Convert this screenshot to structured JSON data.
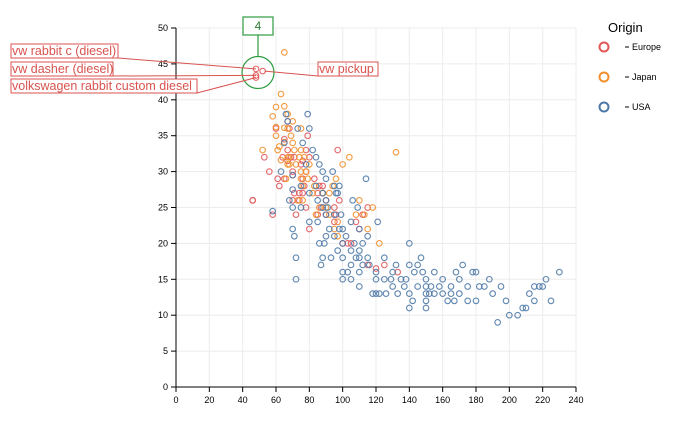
{
  "chart_data": {
    "type": "scatter",
    "title": "",
    "xlabel": "",
    "ylabel": "",
    "xlim": [
      0,
      240
    ],
    "ylim": [
      0,
      50
    ],
    "x_ticks": [
      0,
      20,
      40,
      60,
      80,
      100,
      120,
      140,
      160,
      180,
      200,
      220,
      240
    ],
    "y_ticks": [
      0,
      5,
      10,
      15,
      20,
      25,
      30,
      35,
      40,
      45,
      50
    ],
    "grid": true,
    "legend": {
      "title": "Origin",
      "placement": "top-right",
      "entries": [
        {
          "label": "Europe",
          "color": "#e15759"
        },
        {
          "label": "Japan",
          "color": "#f28e2b"
        },
        {
          "label": "USA",
          "color": "#4e79a7"
        }
      ]
    },
    "series": [
      {
        "name": "Europe",
        "points": [
          [
            46,
            26
          ],
          [
            46,
            26
          ],
          [
            48,
            43.1
          ],
          [
            48,
            44.3
          ],
          [
            48,
            43.4
          ],
          [
            52,
            44
          ],
          [
            60,
            36
          ],
          [
            61,
            29
          ],
          [
            64,
            32
          ],
          [
            65,
            29
          ],
          [
            67,
            37
          ],
          [
            67,
            31.5
          ],
          [
            67,
            33
          ],
          [
            68,
            36
          ],
          [
            70,
            29.5
          ],
          [
            70,
            26
          ],
          [
            70,
            30
          ],
          [
            71,
            27
          ],
          [
            74,
            26
          ],
          [
            75,
            31
          ],
          [
            76,
            27
          ],
          [
            76,
            29
          ],
          [
            76,
            31.5
          ],
          [
            77,
            28
          ],
          [
            78,
            30
          ],
          [
            78,
            25
          ],
          [
            79,
            35
          ],
          [
            80,
            32
          ],
          [
            85,
            24
          ],
          [
            86,
            28
          ],
          [
            88,
            28
          ],
          [
            90,
            24
          ],
          [
            90,
            26
          ],
          [
            95,
            25
          ],
          [
            96,
            24
          ],
          [
            97,
            33
          ],
          [
            103,
            20
          ],
          [
            110,
            22
          ],
          [
            112,
            24
          ],
          [
            115,
            17
          ],
          [
            120,
            16.5
          ],
          [
            125,
            17
          ],
          [
            133,
            16
          ],
          [
            53,
            32
          ],
          [
            56,
            30
          ],
          [
            58,
            24
          ],
          [
            62,
            28
          ],
          [
            65,
            34.5
          ],
          [
            69,
            32
          ],
          [
            71,
            32
          ],
          [
            72,
            24
          ],
          [
            74,
            27
          ],
          [
            78,
            33
          ],
          [
            80,
            22
          ],
          [
            83,
            29
          ],
          [
            85,
            27
          ],
          [
            87,
            25
          ],
          [
            88,
            27
          ],
          [
            95,
            23
          ],
          [
            98,
            26
          ],
          [
            100,
            20
          ],
          [
            105,
            20
          ],
          [
            108,
            23
          ],
          [
            115,
            25
          ]
        ]
      },
      {
        "name": "Japan",
        "points": [
          [
            52,
            33
          ],
          [
            58,
            37.7
          ],
          [
            60,
            39
          ],
          [
            60,
            35
          ],
          [
            61,
            33
          ],
          [
            62,
            33.5
          ],
          [
            65,
            46.6
          ],
          [
            65,
            39.1
          ],
          [
            65,
            34.1
          ],
          [
            67,
            38
          ],
          [
            67,
            36
          ],
          [
            67,
            32
          ],
          [
            67,
            31
          ],
          [
            68,
            32
          ],
          [
            68,
            31
          ],
          [
            70,
            37
          ],
          [
            70,
            34
          ],
          [
            72,
            31
          ],
          [
            74,
            32
          ],
          [
            75,
            29
          ],
          [
            75,
            30
          ],
          [
            75,
            33
          ],
          [
            76,
            26
          ],
          [
            76,
            28
          ],
          [
            77,
            32
          ],
          [
            78,
            30
          ],
          [
            80,
            31
          ],
          [
            83,
            28
          ],
          [
            84,
            24
          ],
          [
            88,
            27
          ],
          [
            90,
            25
          ],
          [
            92,
            24
          ],
          [
            95,
            22
          ],
          [
            96,
            29
          ],
          [
            97,
            23
          ],
          [
            100,
            31
          ],
          [
            108,
            24
          ],
          [
            110,
            26
          ],
          [
            115,
            22
          ],
          [
            122,
            20
          ],
          [
            132,
            32.7
          ],
          [
            60,
            36.2
          ],
          [
            63,
            31.6
          ],
          [
            66,
            29
          ],
          [
            69,
            35
          ],
          [
            71,
            33
          ],
          [
            73,
            26
          ],
          [
            75,
            36
          ],
          [
            79,
            29
          ],
          [
            82,
            27
          ],
          [
            86,
            25
          ],
          [
            92,
            27
          ],
          [
            94,
            28
          ],
          [
            97,
            21
          ],
          [
            104,
            32
          ],
          [
            113,
            24
          ],
          [
            118,
            25
          ],
          [
            63,
            40.8
          ],
          [
            65,
            36.1
          ]
        ]
      },
      {
        "name": "USA",
        "points": [
          [
            58,
            24.5
          ],
          [
            63,
            30
          ],
          [
            65,
            34
          ],
          [
            67,
            37
          ],
          [
            70,
            29.5
          ],
          [
            70,
            27.5
          ],
          [
            70,
            25
          ],
          [
            70,
            22
          ],
          [
            71,
            21
          ],
          [
            72,
            18
          ],
          [
            72,
            15
          ],
          [
            75,
            25
          ],
          [
            75,
            28
          ],
          [
            78,
            31
          ],
          [
            80,
            36
          ],
          [
            80,
            27
          ],
          [
            80,
            23
          ],
          [
            84,
            32
          ],
          [
            84,
            28
          ],
          [
            85,
            26
          ],
          [
            85,
            23
          ],
          [
            86,
            20
          ],
          [
            88,
            18
          ],
          [
            88,
            25
          ],
          [
            88,
            27
          ],
          [
            88,
            30
          ],
          [
            90,
            21
          ],
          [
            90,
            24
          ],
          [
            90,
            26
          ],
          [
            90,
            29
          ],
          [
            92,
            22
          ],
          [
            95,
            21
          ],
          [
            95,
            24
          ],
          [
            95,
            28
          ],
          [
            97,
            19
          ],
          [
            98,
            22
          ],
          [
            100,
            18
          ],
          [
            100,
            20
          ],
          [
            100,
            22
          ],
          [
            100,
            16
          ],
          [
            100,
            15
          ],
          [
            105,
            23
          ],
          [
            105,
            19
          ],
          [
            105,
            17
          ],
          [
            105,
            15
          ],
          [
            107,
            20
          ],
          [
            110,
            19
          ],
          [
            110,
            22
          ],
          [
            110,
            16
          ],
          [
            110,
            14
          ],
          [
            110,
            18
          ],
          [
            112,
            20
          ],
          [
            115,
            21
          ],
          [
            115,
            18
          ],
          [
            116,
            17
          ],
          [
            120,
            16
          ],
          [
            120,
            15
          ],
          [
            120,
            13
          ],
          [
            125,
            15
          ],
          [
            125,
            18
          ],
          [
            129,
            15
          ],
          [
            130,
            14
          ],
          [
            130,
            16
          ],
          [
            132,
            17
          ],
          [
            135,
            15
          ],
          [
            137,
            14
          ],
          [
            140,
            20
          ],
          [
            140,
            17
          ],
          [
            140,
            13
          ],
          [
            140,
            11
          ],
          [
            142,
            12
          ],
          [
            145,
            14
          ],
          [
            145,
            17
          ],
          [
            148,
            16
          ],
          [
            150,
            15
          ],
          [
            150,
            14
          ],
          [
            150,
            13
          ],
          [
            150,
            12
          ],
          [
            150,
            11
          ],
          [
            152,
            13
          ],
          [
            153,
            14
          ],
          [
            155,
            13
          ],
          [
            158,
            14
          ],
          [
            160,
            15
          ],
          [
            160,
            13
          ],
          [
            165,
            13
          ],
          [
            165,
            14
          ],
          [
            167,
            12
          ],
          [
            170,
            15
          ],
          [
            170,
            13
          ],
          [
            175,
            14
          ],
          [
            175,
            12
          ],
          [
            180,
            16
          ],
          [
            180,
            12
          ],
          [
            185,
            14
          ],
          [
            190,
            13
          ],
          [
            193,
            9
          ],
          [
            198,
            12
          ],
          [
            200,
            10
          ],
          [
            208,
            11
          ],
          [
            210,
            11
          ],
          [
            215,
            14
          ],
          [
            215,
            12
          ],
          [
            220,
            14
          ],
          [
            225,
            12
          ],
          [
            230,
            16
          ],
          [
            97,
            27
          ],
          [
            98,
            28
          ],
          [
            94,
            30
          ],
          [
            93,
            18
          ],
          [
            91,
            25
          ],
          [
            89,
            20
          ],
          [
            87,
            17
          ],
          [
            86,
            31
          ],
          [
            103,
            16
          ],
          [
            106,
            26
          ],
          [
            108,
            18
          ],
          [
            112,
            17
          ],
          [
            118,
            13
          ],
          [
            122,
            13
          ],
          [
            126,
            13
          ],
          [
            133,
            13
          ],
          [
            138,
            15
          ],
          [
            143,
            16
          ],
          [
            147,
            18
          ],
          [
            155,
            16
          ],
          [
            163,
            12
          ],
          [
            168,
            16
          ],
          [
            172,
            17
          ],
          [
            178,
            16
          ],
          [
            182,
            14
          ],
          [
            188,
            15
          ],
          [
            195,
            14
          ],
          [
            205,
            10
          ],
          [
            212,
            13
          ],
          [
            218,
            14
          ],
          [
            222,
            15
          ],
          [
            66,
            38
          ],
          [
            68,
            26
          ],
          [
            73,
            36
          ],
          [
            76,
            34
          ],
          [
            79,
            38
          ],
          [
            82,
            33
          ],
          [
            96,
            27
          ],
          [
            99,
            24
          ],
          [
            102,
            21
          ],
          [
            109,
            25
          ],
          [
            114,
            29
          ],
          [
            121,
            23
          ]
        ]
      }
    ],
    "annotations": {
      "cluster_count": "4",
      "labels": [
        {
          "text": "vw rabbit c (diesel)",
          "point": [
            48,
            44.3
          ]
        },
        {
          "text": "vw dasher (diesel)",
          "point": [
            48,
            43.4
          ]
        },
        {
          "text": "volkswagen rabbit custom diesel",
          "point": [
            48,
            43.1
          ]
        },
        {
          "text": "vw pickup",
          "point": [
            52,
            44
          ]
        }
      ]
    }
  }
}
